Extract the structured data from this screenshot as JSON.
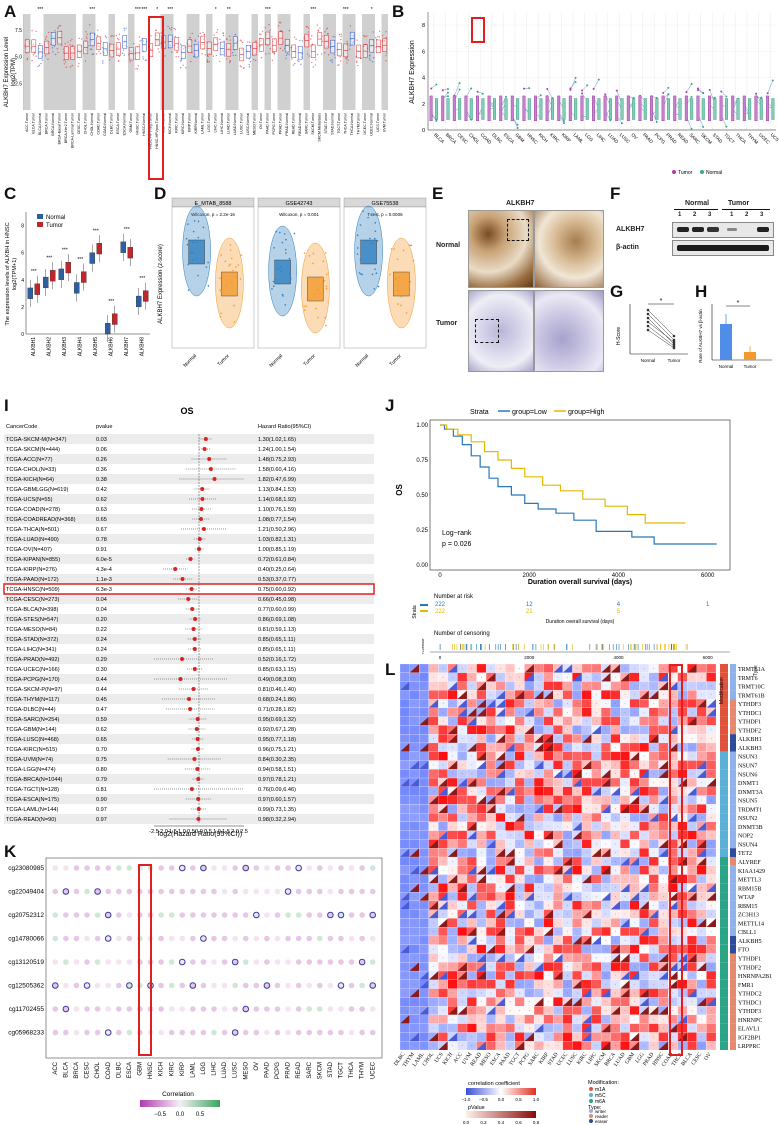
{
  "labels": {
    "A": "A",
    "B": "B",
    "C": "C",
    "D": "D",
    "E": "E",
    "F": "F",
    "G": "G",
    "H": "H",
    "I": "I",
    "J": "J",
    "K": "K",
    "L": "L"
  },
  "panelA": {
    "ylabel": "ALKBH7 Expression Level",
    "ylabel2": "log2(TPM)",
    "yticks": [
      "7.5",
      "5.0",
      "2.5"
    ],
    "sig": [
      "***",
      "***",
      "***",
      "***",
      "*",
      "***",
      "*",
      "**",
      "***",
      "***",
      "***",
      "*"
    ],
    "cats": [
      "ACC.Tumor",
      "BLCA.Tumor",
      "BLCA.Normal",
      "BRCA.Tumor",
      "BRCA.Normal",
      "BRCA-Basal.Tumor",
      "BRCA-Her2.Tumor",
      "BRCA-Luminal.Tumor",
      "CESC.Tumor",
      "CHOL.Tumor",
      "CHOL.Normal",
      "COAD.Tumor",
      "COAD.Normal",
      "DLBC.Tumor",
      "ESCA.Tumor",
      "ESCA.Normal",
      "GBM.Tumor",
      "HNSC.Tumor",
      "HNSC.Normal",
      "HNSC-HPVneg.Tumor",
      "HNSC-HPVpos.Tumor",
      "KICH.Tumor",
      "KICH.Normal",
      "KIRC.Tumor",
      "KIRC.Normal",
      "KIRP.Tumor",
      "KIRP.Normal",
      "LAML.Tumor",
      "LGG.Tumor",
      "LIHC.Tumor",
      "LIHC.Normal",
      "LUAD.Tumor",
      "LUAD.Normal",
      "LUSC.Tumor",
      "LUSC.Normal",
      "MESO.Tumor",
      "OV.Tumor",
      "PAAD.Tumor",
      "PCPG.Tumor",
      "PRAD.Tumor",
      "PRAD.Normal",
      "READ.Tumor",
      "READ.Normal",
      "SARC.Tumor",
      "SKCM.Tumor",
      "SKCM.Metastasis",
      "STAD.Tumor",
      "STAD.Normal",
      "TGCT.Tumor",
      "THCA.Tumor",
      "THCA.Normal",
      "THYM.Tumor",
      "UCEC.Tumor",
      "UCEC.Normal",
      "UCS.Tumor",
      "UVM.Tumor"
    ]
  },
  "panelB": {
    "ylabel": "ALKBH7 Expression",
    "yticks": [
      "8",
      "6",
      "4",
      "2",
      "0"
    ],
    "cats": [
      "BLCA",
      "BRCA",
      "CESC",
      "CHOL",
      "COAD",
      "DLBC",
      "ESCA",
      "GBM",
      "HNSC",
      "KICH",
      "KIRC",
      "KIRP",
      "LAML",
      "LGG",
      "LIHC",
      "LUAD",
      "LUSC",
      "OV",
      "PAAD",
      "PCPG",
      "PRAD",
      "READ",
      "SARC",
      "SKCM",
      "STAD",
      "TGCT",
      "THCA",
      "THYM",
      "UCEC",
      "UCS"
    ],
    "legend_tumor": "Tumor",
    "legend_normal": "Normal"
  },
  "panelC": {
    "ylabel": "The expression levels of ALKBH in HNSC",
    "ylabel2": "log2(TPM+1)",
    "legend": [
      "Normal",
      "Tumor"
    ],
    "cats": [
      "ALKBH1",
      "ALKBH2",
      "ALKBH3",
      "ALKBH4",
      "ALKBH5",
      "ALKBH6",
      "ALKBH7",
      "ALKBH8"
    ],
    "sig": [
      "***",
      "***",
      "***",
      "***",
      "***",
      "***",
      "***",
      "***"
    ],
    "yticks": [
      "8",
      "6",
      "4",
      "2",
      "0"
    ]
  },
  "panelD": {
    "ylabel": "ALKBH7 Expression (z-score)",
    "charts": [
      {
        "title": "E_MTAB_8588",
        "stat": "Wilcoxon, p = 2.2e-16"
      },
      {
        "title": "GSE42743",
        "stat": "Wilcoxon, p = 0.001"
      },
      {
        "title": "GSE75538",
        "stat": "T-test, p = 0.0006"
      }
    ],
    "xlabels": [
      "Normal",
      "Tumor"
    ]
  },
  "panelE": {
    "title": "ALKBH7",
    "rows": [
      "Normal",
      "Tumor"
    ]
  },
  "panelF": {
    "groups": [
      "Normal",
      "Tumor"
    ],
    "lanes": [
      "1",
      "2",
      "3",
      "1",
      "2",
      "3"
    ],
    "rows": [
      "ALKBH7",
      "β-actin"
    ]
  },
  "panelG": {
    "ylabel": "H-Score",
    "xlabels": [
      "Normal",
      "Tumor"
    ],
    "sig": "*"
  },
  "panelH": {
    "ylabel": "Rate of ALKBH7 vs β-actin",
    "xlabels": [
      "Normal",
      "Tumor"
    ],
    "sig": "*"
  },
  "panelI": {
    "title": "OS",
    "headers": [
      "CancerCode",
      "pvalue",
      "Hazard Ratio(95%CI)"
    ],
    "xlabel": "log2(Hazard Ratio(95%CI))",
    "xticks": [
      "-2.5",
      "-2.0",
      "-1.5",
      "-1.0",
      "-0.5",
      "0.0",
      "0.5",
      "1.0",
      "1.5",
      "2.0",
      "2.5"
    ],
    "rows": [
      [
        "TCGA-SKCM-M(N=347)",
        "0.03",
        "1.30(1.02,1.65)"
      ],
      [
        "TCGA-SKCM(N=444)",
        "0.06",
        "1.24(1.00,1.54)"
      ],
      [
        "TCGA-ACC(N=77)",
        "0.26",
        "1.48(0.75,2.93)"
      ],
      [
        "TCGA-CHOL(N=33)",
        "0.36",
        "1.58(0.60,4.16)"
      ],
      [
        "TCGA-KICH(N=64)",
        "0.38",
        "1.82(0.47,6.99)"
      ],
      [
        "TCGA-GBMLGG(N=619)",
        "0.42",
        "1.13(0.84,1.53)"
      ],
      [
        "TCGA-UCS(N=55)",
        "0.62",
        "1.14(0.68,1.92)"
      ],
      [
        "TCGA-COAD(N=278)",
        "0.63",
        "1.10(0.76,1.59)"
      ],
      [
        "TCGA-COADREAD(N=368)",
        "0.65",
        "1.08(0.77,1.54)"
      ],
      [
        "TCGA-THCA(N=501)",
        "0.67",
        "1.21(0.50,2.96)"
      ],
      [
        "TCGA-LUAD(N=490)",
        "0.78",
        "1.03(0.82,1.31)"
      ],
      [
        "TCGA-OV(N=407)",
        "0.91",
        "1.00(0.85,1.19)"
      ],
      [
        "TCGA-KIPAN(N=855)",
        "6.0e-5",
        "0.72(0.61,0.84)"
      ],
      [
        "TCGA-KIRP(N=276)",
        "4.3e-4",
        "0.40(0.25,0.64)"
      ],
      [
        "TCGA-PAAD(N=172)",
        "1.1e-3",
        "0.53(0.37,0.77)"
      ],
      [
        "TCGA-HNSC(N=509)",
        "6.3e-3",
        "0.75(0.60,0.92)"
      ],
      [
        "TCGA-CESC(N=273)",
        "0.04",
        "0.66(0.45,0.98)"
      ],
      [
        "TCGA-BLCA(N=398)",
        "0.04",
        "0.77(0.60,0.99)"
      ],
      [
        "TCGA-STES(N=547)",
        "0.20",
        "0.86(0.69,1.08)"
      ],
      [
        "TCGA-MESO(N=84)",
        "0.22",
        "0.81(0.59,1.13)"
      ],
      [
        "TCGA-STAD(N=372)",
        "0.24",
        "0.85(0.65,1.11)"
      ],
      [
        "TCGA-LIHC(N=341)",
        "0.24",
        "0.85(0.65,1.11)"
      ],
      [
        "TCGA-PRAD(N=492)",
        "0.29",
        "0.52(0.16,1.72)"
      ],
      [
        "TCGA-UCEC(N=166)",
        "0.30",
        "0.85(0.63,1.15)"
      ],
      [
        "TCGA-PCPG(N=170)",
        "0.44",
        "0.49(0.08,3.00)"
      ],
      [
        "TCGA-SKCM-P(N=97)",
        "0.44",
        "0.81(0.46,1.40)"
      ],
      [
        "TCGA-THYM(N=117)",
        "0.45",
        "0.68(0.24,1.86)"
      ],
      [
        "TCGA-DLBC(N=44)",
        "0.47",
        "0.71(0.28,1.82)"
      ],
      [
        "TCGA-SARC(N=254)",
        "0.59",
        "0.95(0.69,1.32)"
      ],
      [
        "TCGA-GBM(N=144)",
        "0.62",
        "0.92(0.67,1.28)"
      ],
      [
        "TCGA-LUSC(N=468)",
        "0.65",
        "0.95(0.77,1.18)"
      ],
      [
        "TCGA-KIRC(N=515)",
        "0.70",
        "0.96(0.75,1.21)"
      ],
      [
        "TCGA-UVM(N=74)",
        "0.75",
        "0.84(0.30,2.35)"
      ],
      [
        "TCGA-LGG(N=474)",
        "0.80",
        "0.94(0.58,1.51)"
      ],
      [
        "TCGA-BRCA(N=1044)",
        "0.79",
        "0.97(0.78,1.21)"
      ],
      [
        "TCGA-TGCT(N=128)",
        "0.81",
        "0.76(0.09,6.46)"
      ],
      [
        "TCGA-ESCA(N=175)",
        "0.90",
        "0.97(0.60,1.57)"
      ],
      [
        "TCGA-LAML(N=144)",
        "0.97",
        "0.99(0.73,1.35)"
      ],
      [
        "TCGA-READ(N=90)",
        "0.97",
        "0.98(0.32,2.94)"
      ]
    ]
  },
  "panelJ": {
    "strata_label": "Strata",
    "legend": [
      "group=Low",
      "group=High"
    ],
    "ylabel": "OS",
    "xlabel": "Duration overall survival (days)",
    "yticks": [
      "1.00",
      "0.75",
      "0.50",
      "0.25",
      "0.00"
    ],
    "xticks": [
      "0",
      "2000",
      "4000",
      "6000"
    ],
    "stat1": "Log−rank",
    "stat2": "p = 0.026",
    "risk_title": "Number at risk",
    "risk_low": [
      "222",
      "12",
      "4",
      "1"
    ],
    "risk_high": [
      "222",
      "21",
      "5"
    ],
    "censor_title": "Number of censoring",
    "censor_ylabel": "n.censor",
    "strata_side": "Strata"
  },
  "panelK": {
    "rows": [
      "cg23080985",
      "cg22049404",
      "cg20752312",
      "cg14780066",
      "cg13120519",
      "cg12505362",
      "cg11702455",
      "cg05968233"
    ],
    "cols": [
      "ACC",
      "BLCA",
      "BRCA",
      "CESC",
      "CHOL",
      "COAD",
      "DLBC",
      "ESCA",
      "GBM",
      "HNSC",
      "KICH",
      "KIRC",
      "KIRP",
      "LAML",
      "LGG",
      "LIHC",
      "LUAD",
      "LUSC",
      "MESO",
      "OV",
      "PAAD",
      "PCPG",
      "PRAD",
      "READ",
      "SARC",
      "SKCM",
      "STAD",
      "TGCT",
      "THCA",
      "THYM",
      "UCEC"
    ],
    "legend_title": "Correlation",
    "legend_ticks": [
      "−0.5",
      "0.0",
      "0.5"
    ]
  },
  "panelL": {
    "rows": [
      "TRMT61A",
      "TRMT6",
      "TRMT10C",
      "TRMT61B",
      "YTHDF3",
      "YTHDC1",
      "YTHDF1",
      "YTHDF2",
      "ALKBH1",
      "ALKBH3",
      "NSUN3",
      "NSUN7",
      "NSUN6",
      "DNMT1",
      "DNMT3A",
      "NSUN5",
      "TRDMT1",
      "NSUN2",
      "DNMT3B",
      "NOP2",
      "NSUN4",
      "TET2",
      "ALYREF",
      "KIAA1429",
      "METTL3",
      "RBM15B",
      "WTAP",
      "RBM15",
      "ZC3H13",
      "METTL14",
      "CBLL1",
      "ALKBH5",
      "FTO",
      "YTHDF1",
      "YTHDF2",
      "HNRNPA2B1",
      "FMR1",
      "YTHDC2",
      "YTHDC1",
      "YTHDF3",
      "HNRNPC",
      "ELAVL1",
      "IGF2BP1",
      "LRPPRC"
    ],
    "cols": [
      "DLBC",
      "THYM",
      "LAML",
      "CHOL",
      "UCS",
      "KICH",
      "ACC",
      "UVM",
      "READ",
      "MESO",
      "ESCA",
      "PAAD",
      "TGCT",
      "PCPG",
      "SARC",
      "KIRP",
      "STAD",
      "UCEC",
      "LUSC",
      "KIRC",
      "LIHC",
      "SKCM",
      "BRCA",
      "LUAD",
      "GBM",
      "LGG",
      "PRAD",
      "HNSC",
      "COAD",
      "THCA",
      "BLCA",
      "CESC",
      "OV"
    ],
    "header1": "Modification",
    "header2": "Type",
    "cc_title": "correlation coefficient",
    "cc_ticks": [
      "−1.0",
      "−0.5",
      "0.0",
      "0.5",
      "1.0"
    ],
    "pv_title": "pValue",
    "pv_ticks": [
      "0.0",
      "0.2",
      "0.4",
      "0.6",
      "0.8"
    ],
    "mod_title": "Modification:",
    "mods": [
      "m1A",
      "m5C",
      "m6A"
    ],
    "type_title": "Type:",
    "types": [
      "writer",
      "reader",
      "eraser"
    ]
  }
}
